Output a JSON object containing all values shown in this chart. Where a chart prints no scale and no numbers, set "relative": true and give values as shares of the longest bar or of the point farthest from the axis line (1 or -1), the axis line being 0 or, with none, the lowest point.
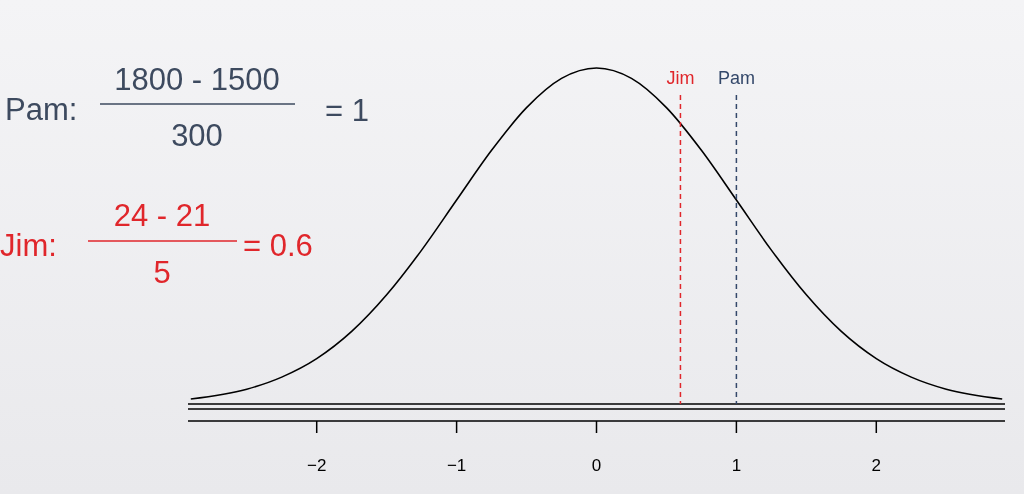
{
  "chart_data": {
    "type": "line",
    "relative": true,
    "x": [
      -2.9,
      -2.5,
      -2.25,
      -2,
      -1.75,
      -1.5,
      -1.25,
      -1,
      -0.75,
      -0.5,
      -0.25,
      0,
      0.25,
      0.5,
      0.75,
      1,
      1.25,
      1.5,
      1.75,
      2,
      2.25,
      2.5,
      2.9
    ],
    "series": [
      {
        "color": "#000000",
        "values": [
          0.015,
          0.044,
          0.08,
          0.135,
          0.216,
          0.325,
          0.458,
          0.607,
          0.755,
          0.882,
          0.969,
          1,
          0.969,
          0.882,
          0.755,
          0.607,
          0.458,
          0.325,
          0.216,
          0.135,
          0.08,
          0.044,
          0.015
        ]
      }
    ],
    "xlim": [
      -2.92,
      2.92
    ],
    "xticks": [
      {
        "value": -2,
        "label": "−2"
      },
      {
        "value": -1,
        "label": "−1"
      },
      0,
      1,
      2
    ],
    "ref_lines": [
      {
        "axis": "x",
        "value": 0.6,
        "label": "Jim",
        "color": "#e0262b",
        "line_style": "dashed"
      },
      {
        "axis": "x",
        "value": 1,
        "label": "Pam",
        "color": "#34486a",
        "line_style": "dashed"
      }
    ],
    "annotations": [
      "Pam:",
      "1800 - 1500",
      "300",
      "= 1",
      "Jim:",
      "24 - 21",
      "5",
      "= 0.6"
    ]
  }
}
